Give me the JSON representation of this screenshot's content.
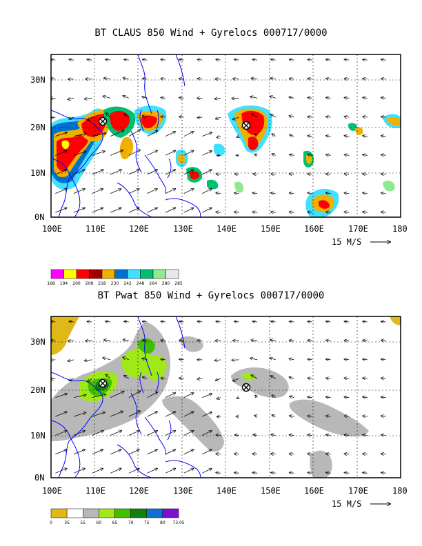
{
  "panels": [
    {
      "id": "claus",
      "title": "BT CLAUS 850 Wind + Gyrelocs 000717/0000",
      "scale_label": "15 M/S",
      "x_ticks": [
        "100E",
        "110E",
        "120E",
        "130E",
        "140E",
        "150E",
        "160E",
        "170E",
        "180"
      ],
      "y_ticks": [
        "0N",
        "10N",
        "20N",
        "30N"
      ],
      "colorbar_colors": [
        "#ff00ff",
        "#ffff00",
        "#ff0000",
        "#a00000",
        "#f0b000",
        "#0070d0",
        "#40e0ff",
        "#00c070",
        "#90e890",
        "#e8e8e8"
      ],
      "colorbar_labels": [
        "168",
        "194",
        "200",
        "208",
        "218",
        "230",
        "242",
        "248",
        "264",
        "280",
        "285"
      ]
    },
    {
      "id": "pwat",
      "title": "BT Pwat 850 Wind + Gyrelocs 000717/0000",
      "scale_label": "15 M/S",
      "x_ticks": [
        "100E",
        "110E",
        "120E",
        "130E",
        "140E",
        "150E",
        "160E",
        "170E",
        "180"
      ],
      "y_ticks": [
        "0N",
        "10N",
        "20N",
        "30N"
      ],
      "colorbar_colors": [
        "#e0b818",
        "#ffffff",
        "#b8b8b8",
        "#a0e818",
        "#40c000",
        "#108010",
        "#1070d0",
        "#8010d0"
      ],
      "colorbar_labels": [
        "0",
        "35",
        "55",
        "60",
        "65",
        "70",
        "75",
        "80",
        "73.05"
      ]
    }
  ],
  "chart_data": [
    {
      "type": "heatmap",
      "title": "BT CLAUS 850 Wind + Gyrelocs 000717/0000",
      "xlim": [
        100,
        180
      ],
      "ylim": [
        0,
        35
      ],
      "x_unit": "deg E",
      "y_unit": "deg N",
      "colorbar_levels": [
        168,
        194,
        200,
        208,
        218,
        230,
        242,
        248,
        264,
        280,
        285
      ],
      "gyre_locations": [
        {
          "lon": 111.5,
          "lat": 21.5
        },
        {
          "lon": 145,
          "lat": 20.5
        }
      ],
      "grid": true
    },
    {
      "type": "heatmap",
      "title": "BT Pwat 850 Wind + Gyrelocs 000717/0000",
      "xlim": [
        100,
        180
      ],
      "ylim": [
        0,
        35
      ],
      "x_unit": "deg E",
      "y_unit": "deg N",
      "colorbar_levels": [
        0,
        35,
        55,
        60,
        65,
        70,
        75,
        80,
        73.05
      ],
      "gyre_locations": [
        {
          "lon": 111.5,
          "lat": 21.5
        },
        {
          "lon": 145,
          "lat": 20.5
        }
      ],
      "grid": true
    }
  ]
}
